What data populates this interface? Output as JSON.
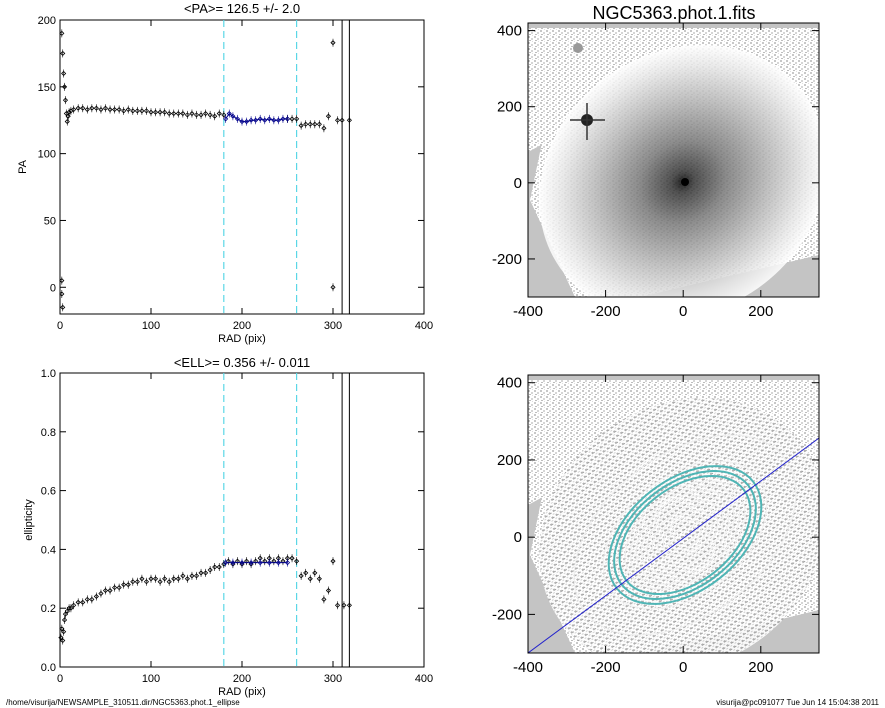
{
  "chart_data": [
    {
      "type": "scatter",
      "title": "<PA>= 126.5 +/-   2.0",
      "xlabel": "RAD (pix)",
      "ylabel": "PA",
      "xlim": [
        0,
        400
      ],
      "ylim": [
        -20,
        200
      ],
      "xticks": [
        0,
        100,
        200,
        300,
        400
      ],
      "yticks": [
        0,
        50,
        100,
        150,
        200
      ],
      "cyan_lines": [
        180,
        260
      ],
      "black_lines": [
        310,
        318
      ],
      "series": [
        {
          "color": "#000000",
          "points": [
            [
              2,
              190
            ],
            [
              3,
              175
            ],
            [
              4,
              160
            ],
            [
              5,
              150
            ],
            [
              6,
              140
            ],
            [
              7,
              130
            ],
            [
              8,
              124
            ],
            [
              9,
              128
            ],
            [
              10,
              131
            ],
            [
              12,
              132
            ],
            [
              15,
              133
            ],
            [
              20,
              134
            ],
            [
              25,
              134
            ],
            [
              30,
              133
            ],
            [
              35,
              134
            ],
            [
              40,
              134
            ],
            [
              45,
              133
            ],
            [
              50,
              134
            ],
            [
              55,
              133
            ],
            [
              60,
              133
            ],
            [
              65,
              133
            ],
            [
              70,
              132
            ],
            [
              75,
              133
            ],
            [
              80,
              132
            ],
            [
              85,
              132
            ],
            [
              90,
              132
            ],
            [
              95,
              132
            ],
            [
              100,
              131
            ],
            [
              105,
              131
            ],
            [
              110,
              131
            ],
            [
              115,
              131
            ],
            [
              120,
              130
            ],
            [
              125,
              130
            ],
            [
              130,
              130
            ],
            [
              135,
              130
            ],
            [
              140,
              129
            ],
            [
              145,
              130
            ],
            [
              150,
              129
            ],
            [
              155,
              129
            ],
            [
              160,
              130
            ],
            [
              165,
              129
            ],
            [
              170,
              128
            ],
            [
              175,
              130
            ],
            [
              180,
              129
            ],
            [
              250,
              126
            ],
            [
              255,
              126
            ],
            [
              260,
              126
            ],
            [
              265,
              121
            ],
            [
              270,
              122
            ],
            [
              275,
              122
            ],
            [
              280,
              122
            ],
            [
              285,
              122
            ],
            [
              290,
              119
            ],
            [
              295,
              128
            ],
            [
              300,
              183
            ],
            [
              300,
              0
            ],
            [
              305,
              125
            ],
            [
              310,
              125
            ],
            [
              318,
              125
            ],
            [
              2,
              5
            ],
            [
              3,
              -15
            ],
            [
              2,
              -5
            ]
          ]
        },
        {
          "color": "#00008b",
          "points": [
            [
              182,
              126
            ],
            [
              186,
              130
            ],
            [
              190,
              128
            ],
            [
              195,
              126
            ],
            [
              200,
              124
            ],
            [
              205,
              124
            ],
            [
              210,
              125
            ],
            [
              215,
              125
            ],
            [
              220,
              126
            ],
            [
              225,
              125
            ],
            [
              230,
              126
            ],
            [
              235,
              125
            ],
            [
              240,
              125
            ],
            [
              245,
              126
            ],
            [
              250,
              126
            ]
          ]
        }
      ]
    },
    {
      "type": "image",
      "title": "NGC5363.phot.1.fits",
      "xlim": [
        -400,
        350
      ],
      "ylim": [
        -300,
        420
      ],
      "xticks": [
        -400,
        -200,
        0,
        200
      ],
      "yticks": [
        -200,
        0,
        200,
        400
      ]
    },
    {
      "type": "scatter",
      "title": "<ELL>= 0.356 +/-  0.011",
      "xlabel": "RAD (pix)",
      "ylabel": "ellipticity",
      "xlim": [
        0,
        400
      ],
      "ylim": [
        0,
        1
      ],
      "xticks": [
        0,
        100,
        200,
        300,
        400
      ],
      "yticks": [
        0.0,
        0.2,
        0.4,
        0.6,
        0.8,
        1.0
      ],
      "cyan_lines": [
        180,
        260
      ],
      "black_lines": [
        310,
        318
      ],
      "series": [
        {
          "color": "#000000",
          "points": [
            [
              1,
              0.1
            ],
            [
              2,
              0.13
            ],
            [
              3,
              0.09
            ],
            [
              4,
              0.12
            ],
            [
              5,
              0.16
            ],
            [
              6,
              0.18
            ],
            [
              8,
              0.19
            ],
            [
              10,
              0.2
            ],
            [
              12,
              0.2
            ],
            [
              15,
              0.21
            ],
            [
              20,
              0.22
            ],
            [
              25,
              0.22
            ],
            [
              30,
              0.23
            ],
            [
              35,
              0.23
            ],
            [
              40,
              0.24
            ],
            [
              45,
              0.25
            ],
            [
              50,
              0.26
            ],
            [
              55,
              0.26
            ],
            [
              60,
              0.27
            ],
            [
              65,
              0.27
            ],
            [
              70,
              0.28
            ],
            [
              75,
              0.28
            ],
            [
              80,
              0.29
            ],
            [
              85,
              0.29
            ],
            [
              90,
              0.3
            ],
            [
              95,
              0.29
            ],
            [
              100,
              0.3
            ],
            [
              105,
              0.3
            ],
            [
              110,
              0.29
            ],
            [
              115,
              0.3
            ],
            [
              120,
              0.29
            ],
            [
              125,
              0.3
            ],
            [
              130,
              0.3
            ],
            [
              135,
              0.31
            ],
            [
              140,
              0.3
            ],
            [
              145,
              0.31
            ],
            [
              150,
              0.31
            ],
            [
              155,
              0.32
            ],
            [
              160,
              0.32
            ],
            [
              165,
              0.33
            ],
            [
              170,
              0.34
            ],
            [
              175,
              0.34
            ],
            [
              180,
              0.35
            ],
            [
              185,
              0.36
            ],
            [
              190,
              0.35
            ],
            [
              195,
              0.36
            ],
            [
              200,
              0.35
            ],
            [
              205,
              0.36
            ],
            [
              210,
              0.35
            ],
            [
              215,
              0.36
            ],
            [
              220,
              0.37
            ],
            [
              225,
              0.36
            ],
            [
              230,
              0.37
            ],
            [
              235,
              0.36
            ],
            [
              240,
              0.37
            ],
            [
              245,
              0.36
            ],
            [
              250,
              0.37
            ],
            [
              255,
              0.37
            ],
            [
              260,
              0.36
            ],
            [
              265,
              0.31
            ],
            [
              270,
              0.32
            ],
            [
              275,
              0.3
            ],
            [
              280,
              0.32
            ],
            [
              285,
              0.3
            ],
            [
              290,
              0.23
            ],
            [
              295,
              0.26
            ],
            [
              300,
              0.36
            ],
            [
              305,
              0.21
            ],
            [
              312,
              0.21
            ],
            [
              318,
              0.21
            ]
          ]
        },
        {
          "color": "#00008b",
          "points": [
            [
              182,
              0.355
            ],
            [
              190,
              0.355
            ],
            [
              200,
              0.355
            ],
            [
              210,
              0.355
            ],
            [
              220,
              0.355
            ],
            [
              230,
              0.355
            ],
            [
              240,
              0.355
            ],
            [
              250,
              0.355
            ]
          ]
        }
      ]
    },
    {
      "type": "image",
      "xlim": [
        -400,
        350
      ],
      "ylim": [
        -300,
        420
      ],
      "xticks": [
        -400,
        -200,
        0,
        200
      ],
      "yticks": [
        -200,
        0,
        200,
        400
      ]
    }
  ],
  "footer": {
    "left": "/home/visurija/NEWSAMPLE_310511.dir/NGC5363.phot.1_ellipse",
    "right": "visurija@pc091077  Tue Jun 14 15:04:38 2011"
  }
}
